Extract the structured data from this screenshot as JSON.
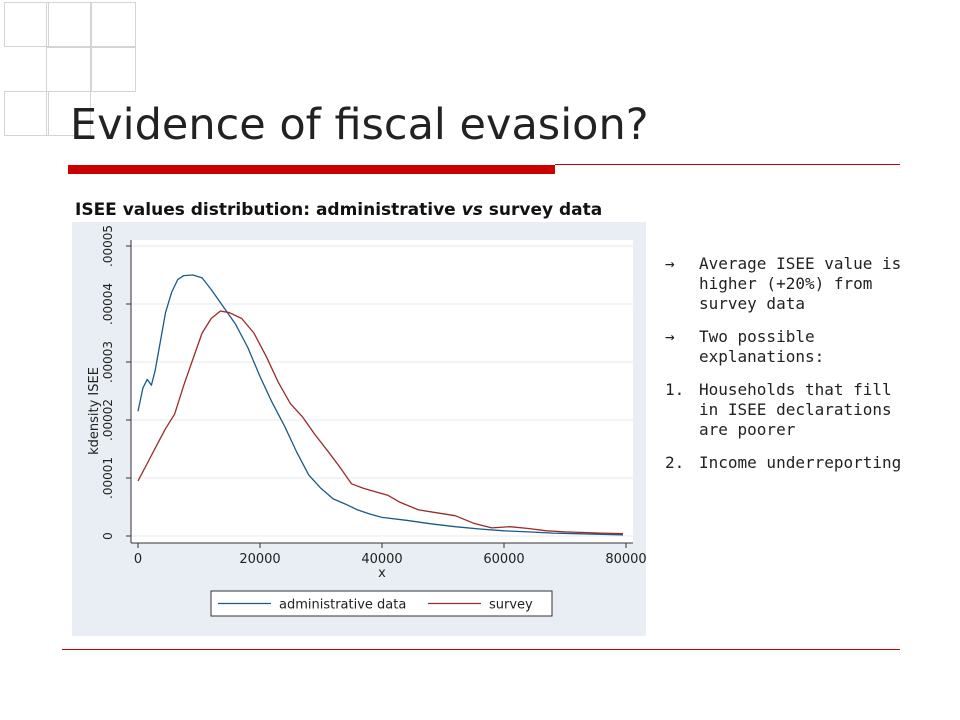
{
  "slide": {
    "title": "Evidence of fiscal evasion?",
    "caption_prefix": "ISEE values distribution: administrative ",
    "caption_vs": "vs",
    "caption_suffix": " survey data",
    "bullets": [
      {
        "marker": "→",
        "text": "Average ISEE value is higher (+20%) from survey data"
      },
      {
        "marker": "→",
        "text": "Two possible explanations:"
      },
      {
        "marker": "1.",
        "text": "Households that fill in ISEE declarations are poorer"
      },
      {
        "marker": "2.",
        "text": "Income underreporting"
      }
    ]
  },
  "colors": {
    "accent_red": "#cc0000",
    "chart_bg": "#e8eef3",
    "admin_line": "#1a5a8a",
    "survey_line": "#9b2a2a"
  },
  "chart_data": {
    "type": "line",
    "title": "",
    "xlabel": "x",
    "ylabel": "kdensity ISEE",
    "xlim": [
      0,
      80000
    ],
    "ylim": [
      0,
      5e-05
    ],
    "x_ticks": [
      0,
      20000,
      40000,
      60000,
      80000
    ],
    "x_tick_labels": [
      "0",
      "20000",
      "40000",
      "60000",
      "80000"
    ],
    "y_ticks": [
      0,
      1e-05,
      2e-05,
      3e-05,
      4e-05,
      5e-05
    ],
    "y_tick_labels": [
      "0",
      ".00001",
      ".00002",
      ".00003",
      ".00004",
      ".00005"
    ],
    "grid": true,
    "legend_position": "bottom",
    "series": [
      {
        "name": "administrative data",
        "color": "#1a5a8a",
        "x": [
          0,
          800,
          1500,
          2200,
          2800,
          3500,
          4500,
          5500,
          6500,
          7500,
          9000,
          10500,
          12000,
          14000,
          16000,
          18000,
          20000,
          22000,
          24000,
          26000,
          28000,
          30000,
          32000,
          34000,
          36000,
          38000,
          40000,
          44000,
          48000,
          52000,
          56000,
          60000,
          64000,
          68000,
          72000,
          76000,
          79500
        ],
        "y": [
          2.15e-05,
          2.55e-05,
          2.7e-05,
          2.6e-05,
          2.85e-05,
          3.25e-05,
          3.85e-05,
          4.2e-05,
          4.42e-05,
          4.49e-05,
          4.5e-05,
          4.45e-05,
          4.25e-05,
          3.95e-05,
          3.65e-05,
          3.25e-05,
          2.75e-05,
          2.3e-05,
          1.9e-05,
          1.45e-05,
          1.05e-05,
          8.2e-06,
          6.4e-06,
          5.5e-06,
          4.5e-06,
          3.8e-06,
          3.2e-06,
          2.7e-06,
          2.1e-06,
          1.6e-06,
          1.2e-06,
          9e-07,
          7e-07,
          5e-07,
          4e-07,
          3e-07,
          2e-07
        ]
      },
      {
        "name": "survey",
        "color": "#9b2a2a",
        "x": [
          0,
          1500,
          3000,
          4500,
          6000,
          7500,
          9000,
          10500,
          12000,
          13500,
          15000,
          17000,
          19000,
          21000,
          23000,
          25000,
          27000,
          29000,
          31000,
          33000,
          35000,
          37000,
          39000,
          41000,
          43000,
          46000,
          49000,
          52000,
          55000,
          58000,
          61000,
          64000,
          67000,
          70000,
          73000,
          76000,
          79500
        ],
        "y": [
          9.5e-06,
          1.25e-05,
          1.55e-05,
          1.85e-05,
          2.1e-05,
          2.6e-05,
          3.05e-05,
          3.5e-05,
          3.75e-05,
          3.88e-05,
          3.85e-05,
          3.75e-05,
          3.5e-05,
          3.1e-05,
          2.65e-05,
          2.28e-05,
          2.05e-05,
          1.75e-05,
          1.48e-05,
          1.2e-05,
          9e-06,
          8.2e-06,
          7.6e-06,
          7e-06,
          5.8e-06,
          4.5e-06,
          4e-06,
          3.5e-06,
          2.2e-06,
          1.4e-06,
          1.6e-06,
          1.3e-06,
          9e-07,
          7e-07,
          6e-07,
          5e-07,
          4e-07
        ]
      }
    ]
  }
}
